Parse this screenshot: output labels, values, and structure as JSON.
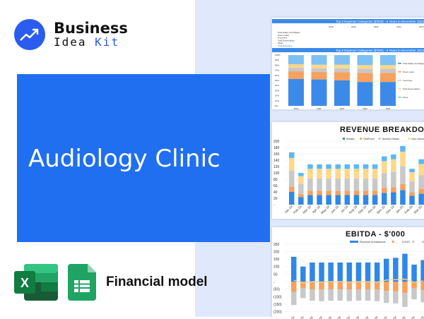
{
  "brand": {
    "line1": "Business",
    "line2a": "Idea ",
    "line2b": "Kit",
    "color": "#2a5cf0"
  },
  "banner": {
    "title": "Audiology Clinic",
    "color": "#1f6ff0"
  },
  "footer": {
    "label": "Financial model",
    "icons": [
      "excel-icon",
      "google-sheets-icon"
    ]
  },
  "chart_data": [
    {
      "type": "bar",
      "stacked": true,
      "percent": true,
      "title": "Top 5 Expense Categories ($'000) - 5 Years to December 2023",
      "table_title": "Top 5 Expense Categories ($'000) - 5 Years to December 2023",
      "table_rows": [
        "Total Salary and Wages",
        "Direct Labor",
        "Food fees",
        "Total Depreciation",
        "Other",
        "Total Expenses"
      ],
      "categories": [
        "2019",
        "2020",
        "2021",
        "2022",
        "2023"
      ],
      "yticks": [
        "100%",
        "90%",
        "80%",
        "70%",
        "60%",
        "50%",
        "40%",
        "30%",
        "20%",
        "10%",
        "0%"
      ],
      "series": [
        {
          "name": "Total Salary and Wages",
          "color": "#3b8ae8",
          "values": [
            53,
            52,
            50,
            47,
            47
          ]
        },
        {
          "name": "Direct Labor",
          "color": "#f7a15e",
          "values": [
            15,
            15,
            16,
            18,
            18
          ]
        },
        {
          "name": "Food fees",
          "color": "#c8c8c8",
          "values": [
            7,
            7,
            8,
            8,
            8
          ]
        },
        {
          "name": "Total Depreciation",
          "color": "#fdd88a",
          "values": [
            7,
            7,
            7,
            7,
            7
          ]
        },
        {
          "name": "Other",
          "color": "#7fc0f2",
          "values": [
            18,
            19,
            19,
            20,
            20
          ]
        }
      ]
    },
    {
      "type": "bar",
      "stacked": true,
      "title": "REVENUE BREAKDOWN - $'000",
      "ylim": [
        0,
        200
      ],
      "yticks": [
        "200",
        "180",
        "160",
        "140",
        "120",
        "100",
        "80",
        "60",
        "40",
        "20",
        "-"
      ],
      "categories": [
        "Jan-19",
        "Feb-19",
        "Mar-19",
        "Apr-19",
        "May-19",
        "Jun-19",
        "Jul-19",
        "Aug-19",
        "Sep-19",
        "Oct-19",
        "Nov-19",
        "Dec-19",
        "Jan-20",
        "Feb-20",
        "Mar-20"
      ],
      "series": [
        {
          "name": "Steaks",
          "color": "#2f87e8",
          "values": [
            40,
            24,
            30,
            30,
            30,
            30,
            30,
            30,
            30,
            30,
            37,
            39,
            46,
            28,
            35
          ]
        },
        {
          "name": "SeaFood",
          "color": "#f7a15e",
          "values": [
            17,
            10,
            14,
            14,
            14,
            14,
            14,
            14,
            14,
            14,
            16,
            16,
            19,
            11,
            14
          ]
        },
        {
          "name": "Alcohol Drinks",
          "color": "#c8c8c8",
          "values": [
            50,
            32,
            38,
            38,
            38,
            38,
            38,
            38,
            38,
            38,
            46,
            48,
            56,
            34,
            44
          ]
        },
        {
          "name": "Non Alcohol Drinks",
          "color": "#fdd88a",
          "values": [
            40,
            24,
            31,
            31,
            31,
            31,
            31,
            31,
            31,
            31,
            38,
            40,
            46,
            29,
            35
          ]
        },
        {
          "color": "#5ab8f5",
          "values": [
            18,
            10,
            14,
            14,
            14,
            14,
            14,
            14,
            14,
            14,
            15,
            15,
            18,
            11,
            15
          ]
        }
      ]
    },
    {
      "type": "bar",
      "stacked": true,
      "title": "EBITDA - $'000",
      "ylim": [
        -200,
        250
      ],
      "yticks": [
        "250",
        "200",
        "150",
        "100",
        "50",
        "-",
        "(50)",
        "(100)",
        "(150)",
        "(200)"
      ],
      "categories": [
        "Jan-19",
        "Feb-19",
        "Mar-19",
        "Apr-19",
        "May-19",
        "Jun-19",
        "Jul-19",
        "Aug-19",
        "Sep-19",
        "Oct-19",
        "Nov-19",
        "Dec-19",
        "Jan-20",
        "Feb-20",
        "Mar-20"
      ],
      "series": [
        {
          "name": "Revenue breakdowns",
          "color": "#2f87e8",
          "values": [
            165,
            100,
            127,
            127,
            127,
            127,
            127,
            127,
            127,
            127,
            152,
            158,
            185,
            113,
            143
          ]
        },
        {
          "name": "COGS",
          "color": "#f7a15e",
          "values": [
            -68,
            -42,
            -52,
            -52,
            -52,
            -52,
            -52,
            -52,
            -52,
            -52,
            -62,
            -65,
            -76,
            -46,
            -58
          ]
        },
        {
          "name": "OPEX",
          "color": "#c8c8c8",
          "values": [
            -88,
            -68,
            -75,
            -78,
            -75,
            -75,
            -78,
            -75,
            -75,
            -78,
            -80,
            -80,
            -92,
            -72,
            -80
          ]
        }
      ],
      "line": {
        "name": "EBITDA",
        "color": "#fdd88a",
        "values": [
          9,
          -10,
          0,
          -3,
          0,
          0,
          -3,
          0,
          0,
          -3,
          10,
          13,
          17,
          -5,
          5
        ]
      }
    }
  ]
}
